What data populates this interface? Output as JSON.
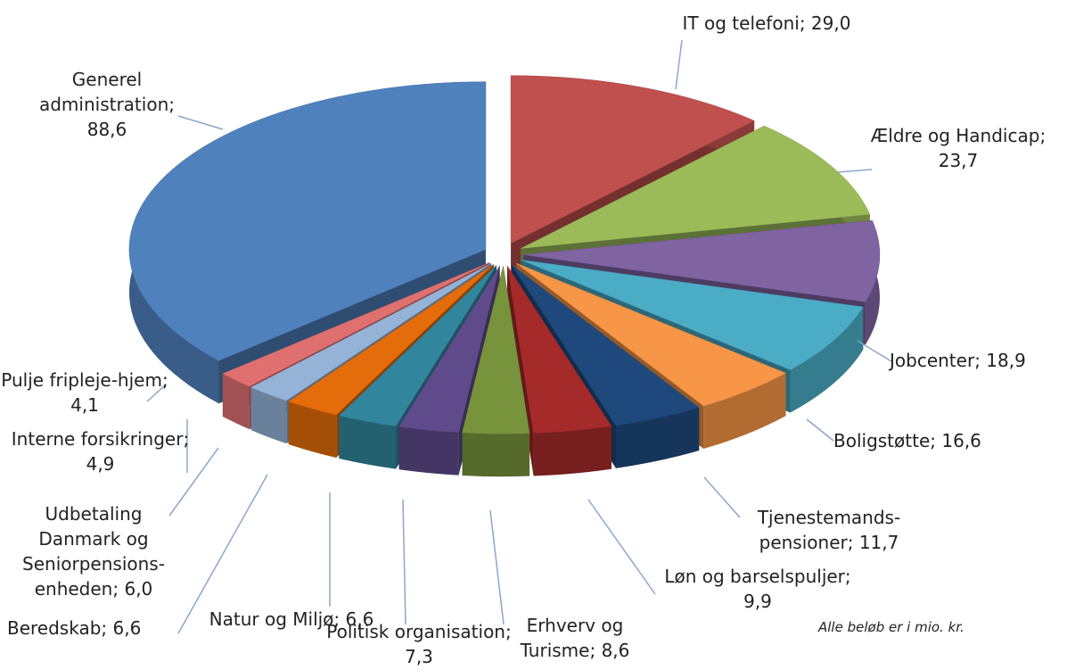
{
  "chart_data": {
    "type": "pie",
    "categories": [
      "IT og telefoni",
      "Ældre og Handicap",
      "Jobcenter",
      "Boligstøtte",
      "Tjenestemands-pensioner",
      "Løn og barselspuljer",
      "Erhverv og Turisme",
      "Politisk organisation",
      "Natur og Miljø",
      "Beredskab",
      "Udbetaling Danmark og Seniorpensions-enheden",
      "Interne forsikringer",
      "Pulje fripleje-hjem",
      "Generel administration"
    ],
    "values": [
      29.0,
      23.7,
      18.9,
      16.6,
      11.7,
      9.9,
      8.6,
      7.3,
      6.6,
      6.6,
      6.0,
      4.9,
      4.1,
      88.6
    ],
    "value_labels": [
      "29,0",
      "23,7",
      "18,9",
      "16,6",
      "11,7",
      "9,9",
      "8,6",
      "7,3",
      "6,6",
      "6,6",
      "6,0",
      "4,9",
      "4,1",
      "88,6"
    ],
    "label_separator": "; ",
    "colors": [
      "#c0504d",
      "#9bbb59",
      "#8064a2",
      "#4bacc6",
      "#f79646",
      "#1f497d",
      "#a52a2a",
      "#77933c",
      "#5f4b8b",
      "#31859c",
      "#e46c0a",
      "#95b3d7",
      "#e07070",
      "#4f81bd"
    ],
    "start_angle": 90,
    "direction": "clockwise",
    "exploded": true,
    "three_d": true,
    "note": "Alle beløb er i mio. kr."
  }
}
